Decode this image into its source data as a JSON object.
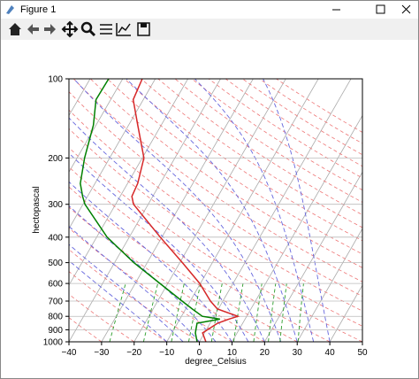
{
  "window": {
    "title": "Figure 1"
  },
  "chart_data": {
    "type": "skewt",
    "xlabel": "degree_Celsius",
    "ylabel": "hectopascal",
    "xlim": [
      -40,
      50
    ],
    "xticks": [
      {
        "value": -40,
        "label": "−40"
      },
      {
        "value": -30,
        "label": "−30"
      },
      {
        "value": -20,
        "label": "−20"
      },
      {
        "value": -10,
        "label": "−10"
      },
      0,
      10,
      20,
      30,
      40,
      50
    ],
    "ylim": [
      1000,
      100
    ],
    "yscale": "log",
    "yticks": [
      100,
      200,
      300,
      400,
      500,
      600,
      700,
      800,
      900,
      1000
    ],
    "grid": true,
    "pressure": [
      1000,
      925,
      850,
      820,
      800,
      750,
      700,
      600,
      500,
      400,
      300,
      280,
      250,
      200,
      150,
      120,
      100
    ],
    "series": [
      {
        "color": "#d62728",
        "values": [
          2.0,
          -0.6,
          2.3,
          5.0,
          7.3,
          -0.3,
          -3.8,
          -10.2,
          -19.2,
          -30.5,
          -44.5,
          -46.4,
          -46.9,
          -49.5,
          -57.2,
          -63.1,
          -64.0
        ]
      },
      {
        "color": "#008000",
        "values": [
          -0.7,
          -2.8,
          -4.0,
          2.3,
          -3.6,
          -8.0,
          -12.5,
          -22.4,
          -34.1,
          -46.8,
          -59.4,
          -61.5,
          -64.5,
          -67.7,
          -70.8,
          -74.5,
          -74.3
        ]
      }
    ]
  }
}
